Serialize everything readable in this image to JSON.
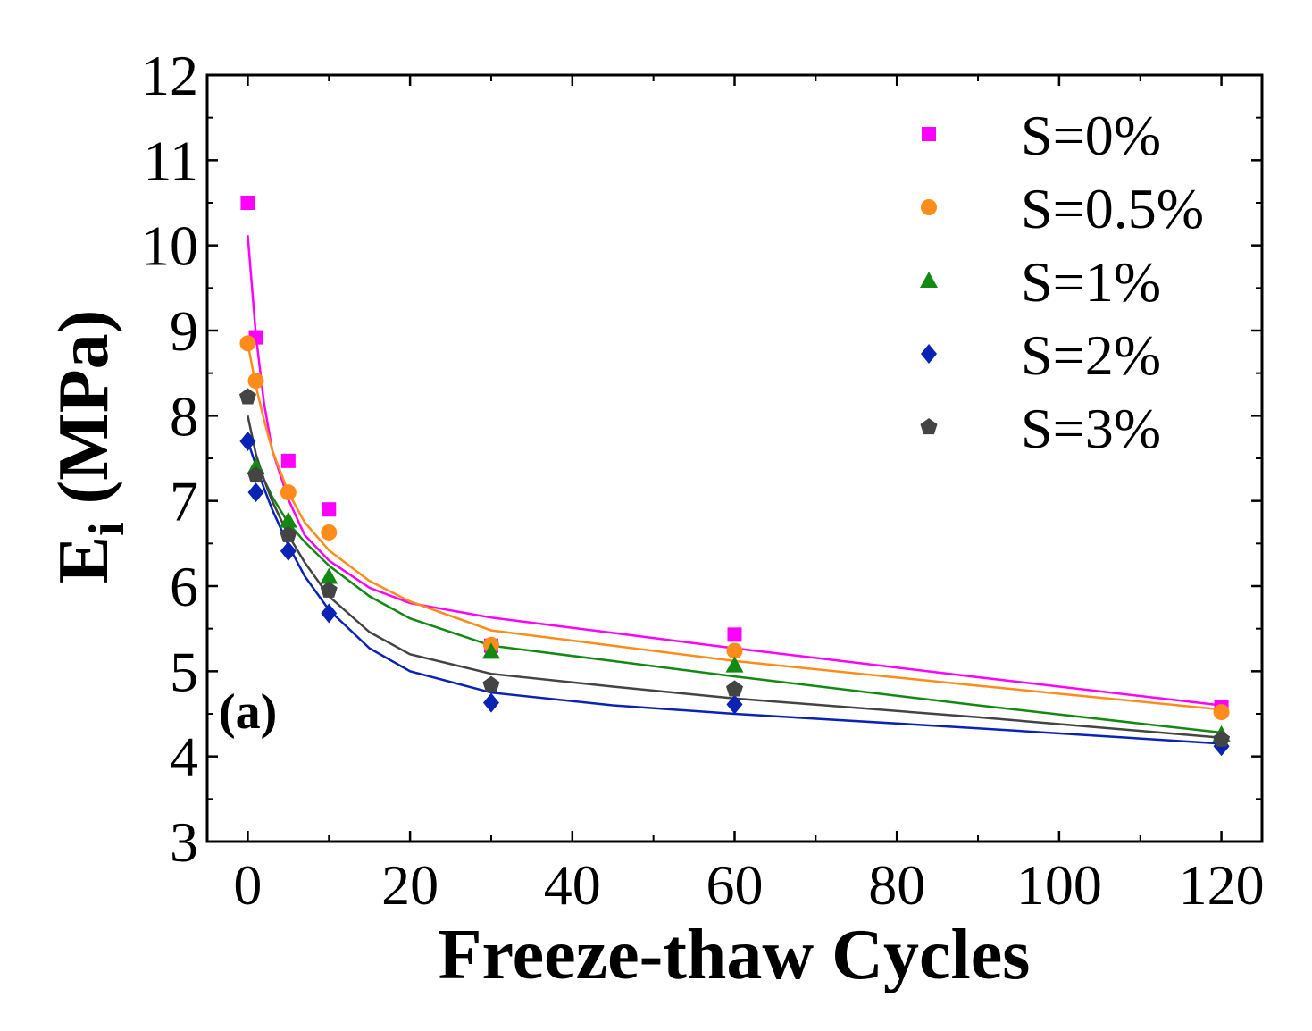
{
  "chart_data": {
    "type": "scatter",
    "panel_label": "(a)",
    "xlabel": "Freeze-thaw Cycles",
    "ylabel_main": "E",
    "ylabel_sub": "i",
    "ylabel_unit": " (MPa)",
    "xlim": [
      -5,
      125
    ],
    "ylim": [
      3,
      12
    ],
    "xticks": [
      0,
      20,
      40,
      60,
      80,
      100,
      120
    ],
    "xtick_labels": [
      "0",
      "20",
      "40",
      "60",
      "80",
      "100",
      "120"
    ],
    "yticks": [
      3,
      4,
      5,
      6,
      7,
      8,
      9,
      10,
      11,
      12
    ],
    "ytick_labels": [
      "3",
      "4",
      "5",
      "6",
      "7",
      "8",
      "9",
      "10",
      "11",
      "12"
    ],
    "legend_position": "top-right",
    "grid": false,
    "series": [
      {
        "name": "S=0%",
        "color": "#ff00ff",
        "marker": "square",
        "points": [
          [
            0,
            10.5
          ],
          [
            1,
            8.92
          ],
          [
            5,
            7.47
          ],
          [
            10,
            6.9
          ],
          [
            30,
            5.3
          ],
          [
            60,
            5.43
          ],
          [
            120,
            4.58
          ]
        ],
        "fit": [
          [
            0,
            10.12
          ],
          [
            1,
            8.95
          ],
          [
            2,
            8.15
          ],
          [
            3,
            7.6
          ],
          [
            5,
            7.02
          ],
          [
            7,
            6.6
          ],
          [
            10,
            6.3
          ],
          [
            15,
            5.98
          ],
          [
            20,
            5.8
          ],
          [
            30,
            5.63
          ],
          [
            45,
            5.45
          ],
          [
            60,
            5.27
          ],
          [
            90,
            4.93
          ],
          [
            120,
            4.6
          ]
        ]
      },
      {
        "name": "S=0.5%",
        "color": "#ff8c1a",
        "marker": "circle",
        "points": [
          [
            0,
            8.85
          ],
          [
            1,
            8.41
          ],
          [
            5,
            7.1
          ],
          [
            10,
            6.63
          ],
          [
            30,
            5.31
          ],
          [
            60,
            5.24
          ],
          [
            120,
            4.52
          ]
        ],
        "fit": [
          [
            0,
            8.85
          ],
          [
            1,
            8.35
          ],
          [
            2,
            7.95
          ],
          [
            3,
            7.6
          ],
          [
            5,
            7.1
          ],
          [
            7,
            6.75
          ],
          [
            10,
            6.42
          ],
          [
            15,
            6.06
          ],
          [
            20,
            5.82
          ],
          [
            30,
            5.48
          ],
          [
            45,
            5.3
          ],
          [
            60,
            5.12
          ],
          [
            90,
            4.83
          ],
          [
            120,
            4.55
          ]
        ]
      },
      {
        "name": "S=1%",
        "color": "#128a12",
        "marker": "triangle",
        "points": [
          [
            1,
            7.4
          ],
          [
            5,
            6.77
          ],
          [
            10,
            6.11
          ],
          [
            30,
            5.23
          ],
          [
            60,
            5.07
          ],
          [
            120,
            4.26
          ]
        ],
        "fit": [
          [
            1,
            7.45
          ],
          [
            2,
            7.25
          ],
          [
            3,
            7.05
          ],
          [
            5,
            6.74
          ],
          [
            7,
            6.52
          ],
          [
            10,
            6.24
          ],
          [
            15,
            5.88
          ],
          [
            20,
            5.62
          ],
          [
            30,
            5.3
          ],
          [
            45,
            5.12
          ],
          [
            60,
            4.94
          ],
          [
            90,
            4.6
          ],
          [
            120,
            4.28
          ]
        ]
      },
      {
        "name": "S=2%",
        "color": "#0a23b4",
        "marker": "diamond",
        "points": [
          [
            0,
            7.7
          ],
          [
            1,
            7.1
          ],
          [
            5,
            6.41
          ],
          [
            10,
            5.68
          ],
          [
            30,
            4.63
          ],
          [
            60,
            4.61
          ],
          [
            120,
            4.12
          ]
        ],
        "fit": [
          [
            0,
            7.7
          ],
          [
            1,
            7.42
          ],
          [
            2,
            7.15
          ],
          [
            3,
            6.9
          ],
          [
            5,
            6.48
          ],
          [
            7,
            6.12
          ],
          [
            10,
            5.72
          ],
          [
            15,
            5.27
          ],
          [
            20,
            5.0
          ],
          [
            30,
            4.75
          ],
          [
            45,
            4.6
          ],
          [
            60,
            4.5
          ],
          [
            90,
            4.33
          ],
          [
            120,
            4.15
          ]
        ]
      },
      {
        "name": "S=3%",
        "color": "#444444",
        "marker": "pentagon",
        "points": [
          [
            0,
            8.22
          ],
          [
            1,
            7.3
          ],
          [
            5,
            6.6
          ],
          [
            10,
            5.95
          ],
          [
            30,
            4.84
          ],
          [
            60,
            4.79
          ],
          [
            120,
            4.2
          ]
        ],
        "fit": [
          [
            0,
            8.0
          ],
          [
            1,
            7.55
          ],
          [
            2,
            7.25
          ],
          [
            3,
            7.0
          ],
          [
            5,
            6.6
          ],
          [
            7,
            6.28
          ],
          [
            10,
            5.88
          ],
          [
            15,
            5.46
          ],
          [
            20,
            5.2
          ],
          [
            30,
            4.97
          ],
          [
            45,
            4.82
          ],
          [
            60,
            4.68
          ],
          [
            90,
            4.46
          ],
          [
            120,
            4.22
          ]
        ]
      }
    ]
  }
}
